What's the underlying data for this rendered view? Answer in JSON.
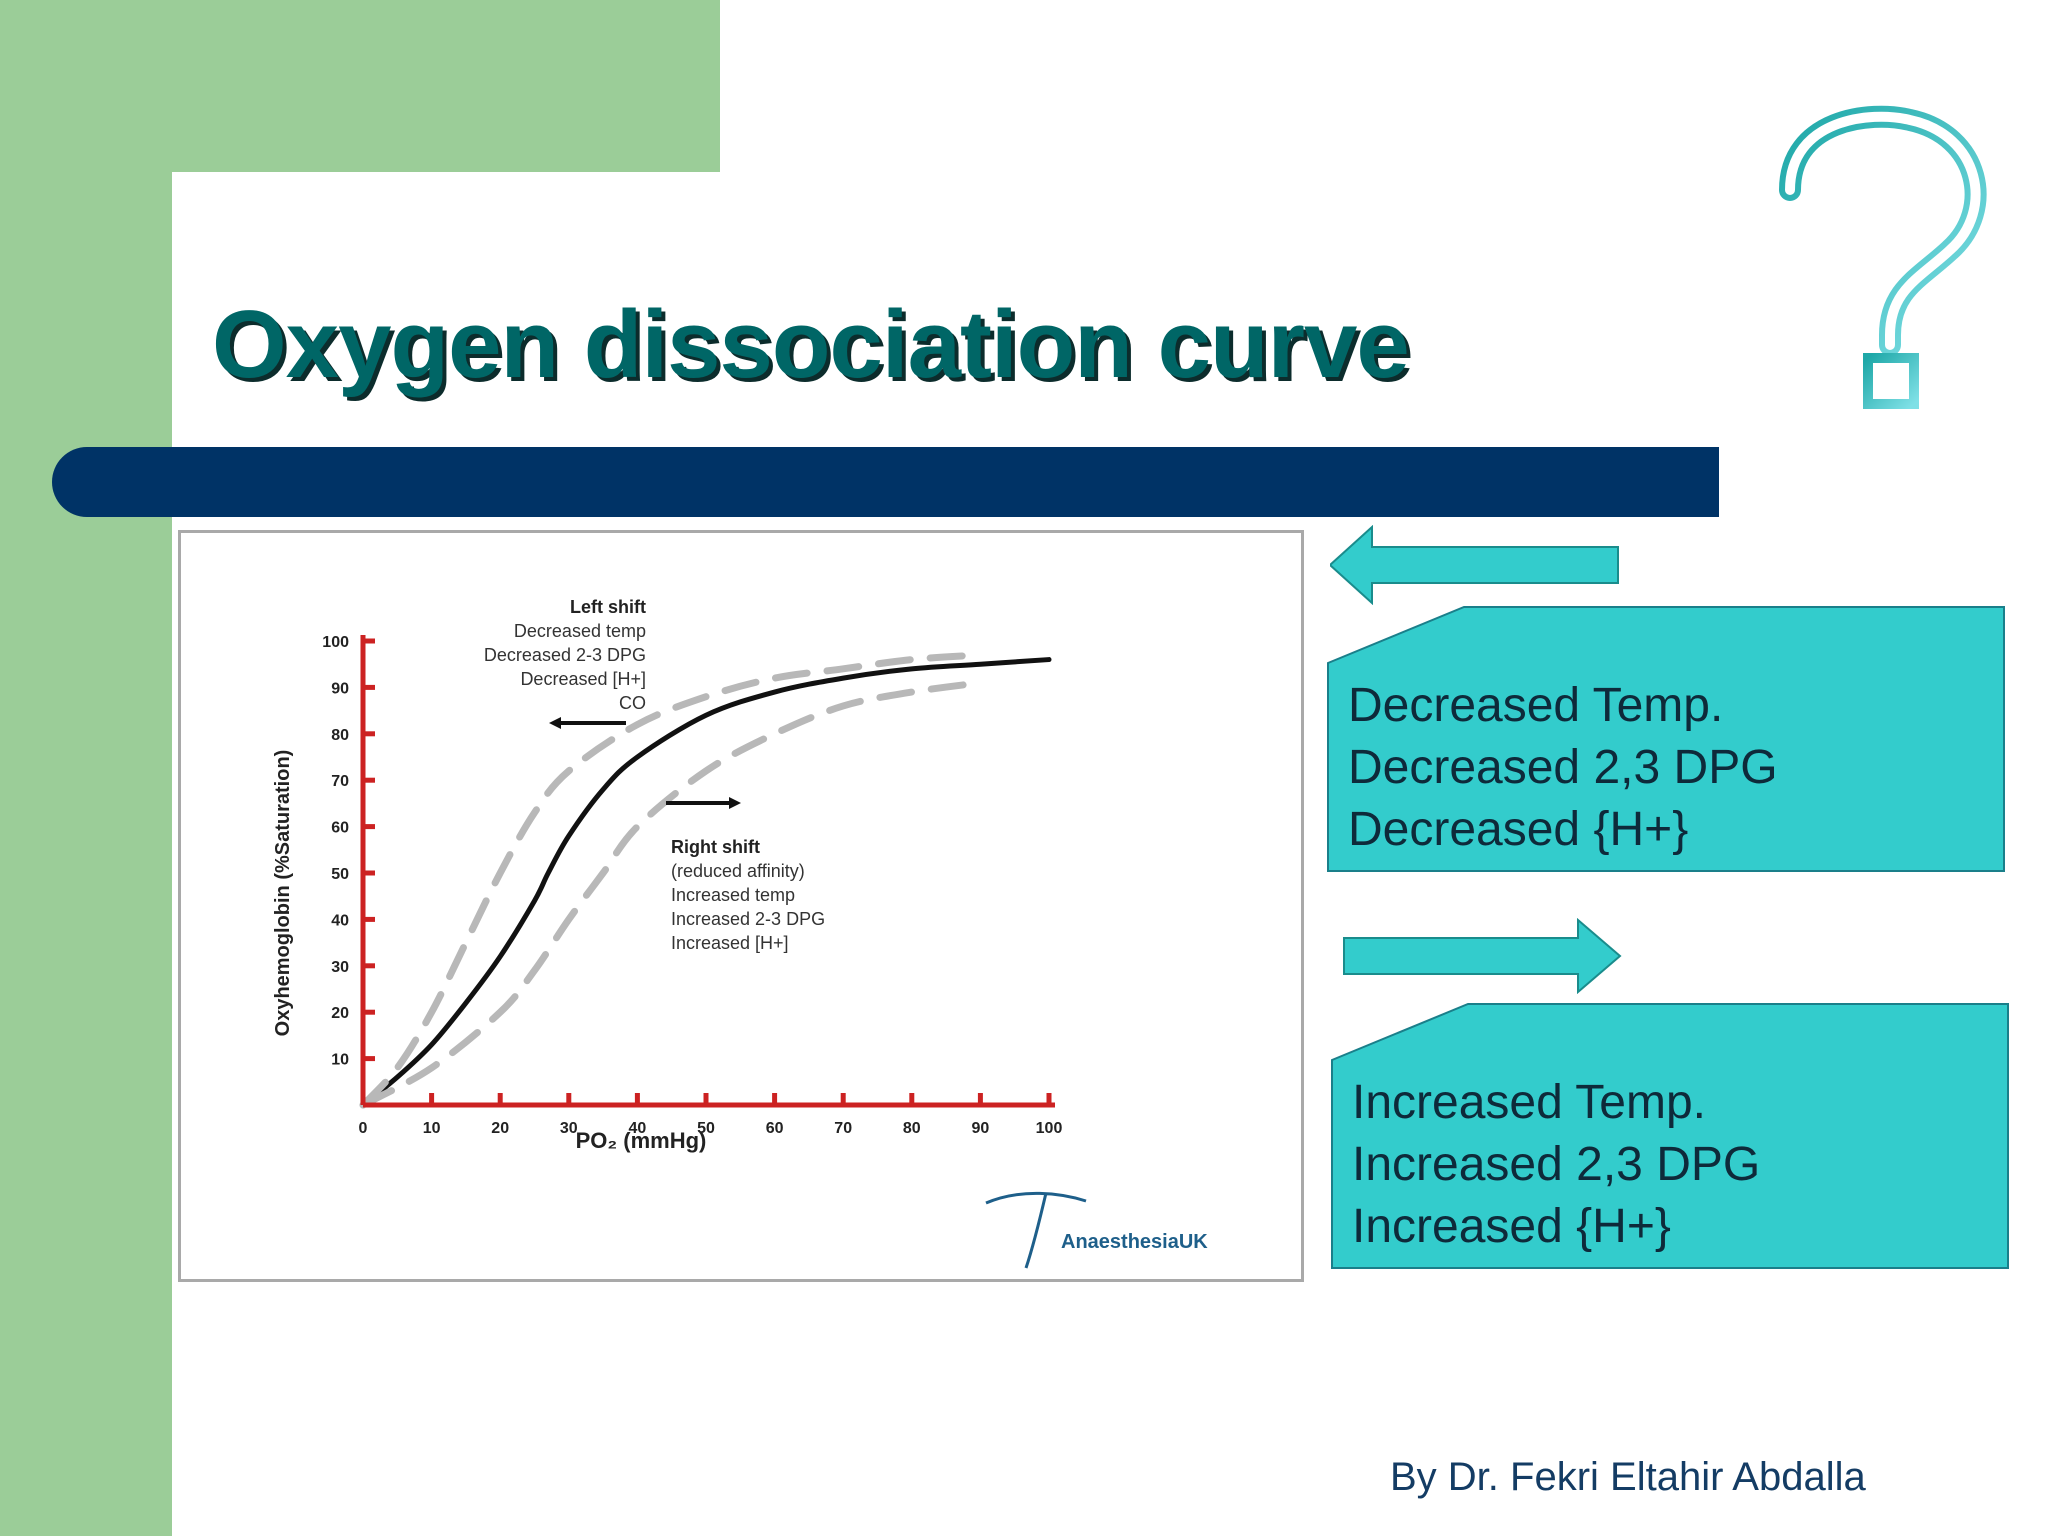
{
  "slide": {
    "title": "Oxygen dissociation curve",
    "author": "By Dr. Fekri Eltahir Abdalla",
    "icon": "question-mark-icon",
    "colors": {
      "green": "#9bcd98",
      "navy": "#003366",
      "teal_title": "#006666",
      "callout": "#33cccc",
      "axis_red": "#cc2222"
    }
  },
  "callouts": {
    "left_shift": {
      "direction": "left-arrow-icon",
      "lines": [
        "Decreased Temp.",
        "Decreased 2,3 DPG",
        "Decreased {H+}"
      ]
    },
    "right_shift": {
      "direction": "right-arrow-icon",
      "lines": [
        "Increased Temp.",
        "Increased 2,3 DPG",
        "Increased {H+}"
      ]
    }
  },
  "chart_data": {
    "type": "line",
    "xlabel": "PO₂  (mmHg)",
    "ylabel": "Oxyhemoglobin (%Saturation)",
    "xlim": [
      0,
      100
    ],
    "ylim": [
      0,
      100
    ],
    "xticks": [
      0,
      10,
      20,
      30,
      40,
      50,
      60,
      70,
      80,
      90,
      100
    ],
    "xtick_labels": [
      "0",
      "10",
      "20",
      "30",
      "40",
      "50",
      "60",
      "70",
      "80",
      "90",
      "100"
    ],
    "yticks": [
      10,
      20,
      30,
      40,
      50,
      60,
      70,
      80,
      90,
      100
    ],
    "ytick_labels": [
      "10",
      "20",
      "30",
      "40",
      "50",
      "60",
      "70",
      "80",
      "90",
      "100"
    ],
    "grid": false,
    "series": [
      {
        "style": "solid",
        "x": [
          0,
          5,
          10,
          15,
          20,
          25,
          27,
          30,
          35,
          40,
          50,
          60,
          70,
          80,
          90,
          100
        ],
        "y": [
          0,
          6,
          13,
          22,
          32,
          44,
          50,
          58,
          68,
          75,
          84,
          89,
          92,
          94,
          95,
          96
        ]
      },
      {
        "style": "dashed",
        "x": [
          0,
          5,
          10,
          15,
          20,
          25,
          30,
          40,
          50,
          60,
          70,
          80,
          90
        ],
        "y": [
          0,
          8,
          20,
          35,
          50,
          63,
          72,
          82,
          88,
          92,
          94,
          96,
          97
        ]
      },
      {
        "style": "dashed",
        "x": [
          0,
          10,
          20,
          25,
          30,
          35,
          40,
          50,
          60,
          70,
          80,
          90
        ],
        "y": [
          0,
          8,
          20,
          29,
          40,
          50,
          60,
          72,
          80,
          86,
          89,
          91
        ]
      }
    ],
    "annotations": {
      "left_shift": {
        "heading": "Left shift",
        "lines": [
          "Decreased temp",
          "Decreased 2-3 DPG",
          "Decreased [H+]",
          "CO"
        ]
      },
      "right_shift": {
        "heading": "Right shift",
        "lines": [
          "(reduced affinity)",
          "Increased temp",
          "Increased 2-3 DPG",
          "Increased [H+]"
        ]
      }
    },
    "watermark": "AnaesthesiaUK"
  }
}
